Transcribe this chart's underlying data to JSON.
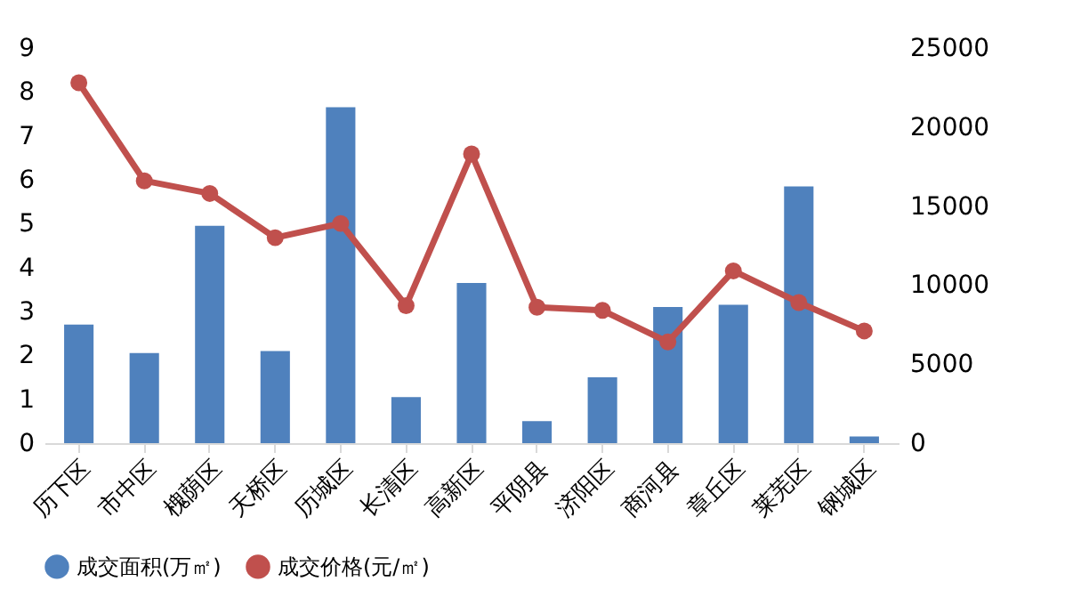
{
  "chart_data": {
    "type": "bar",
    "categories": [
      "历下区",
      "市中区",
      "槐荫区",
      "天桥区",
      "历城区",
      "长清区",
      "高新区",
      "平阴县",
      "济阳区",
      "商河县",
      "章丘区",
      "莱芜区",
      "钢城区"
    ],
    "series": [
      {
        "name": "成交面积(万㎡)",
        "color": "#4f81bd",
        "values": [
          2.7,
          2.05,
          4.95,
          2.1,
          7.65,
          1.05,
          3.65,
          0.5,
          1.5,
          3.1,
          3.15,
          5.85,
          0.15
        ]
      },
      {
        "name": "成交价格(元/㎡)",
        "type": "line",
        "axis": "y2",
        "color": "#c0504d",
        "values": [
          22800,
          16600,
          15800,
          13000,
          13900,
          8700,
          18300,
          8600,
          8400,
          6400,
          10900,
          8900,
          7100
        ]
      }
    ],
    "ylim": [
      0,
      9
    ],
    "yticks": [
      0,
      1,
      2,
      3,
      4,
      5,
      6,
      7,
      8,
      9
    ],
    "y2lim": [
      0,
      25000
    ],
    "y2ticks": [
      0,
      5000,
      10000,
      15000,
      20000,
      25000
    ],
    "marker": "circle",
    "grid": false,
    "legend": "bottom"
  }
}
